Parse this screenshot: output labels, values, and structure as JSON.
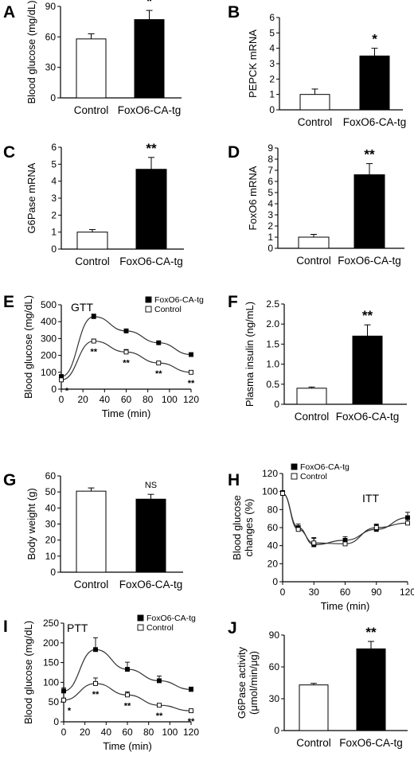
{
  "chart_data": [
    {
      "panel": "A",
      "type": "bar",
      "ylabel": "Blood glucose (mg/dL)",
      "categories": [
        "Control",
        "FoxO6-CA-tg"
      ],
      "values": [
        58,
        77
      ],
      "errors": [
        5,
        9
      ],
      "fills": [
        "#ffffff",
        "#000000"
      ],
      "ylim": [
        0,
        90
      ],
      "yticks": [
        "0",
        "30",
        "60",
        "90"
      ],
      "sig": "*"
    },
    {
      "panel": "B",
      "type": "bar",
      "ylabel": "PEPCK mRNA",
      "categories": [
        "Control",
        "FoxO6-CA-tg"
      ],
      "values": [
        1.0,
        3.5
      ],
      "errors": [
        0.35,
        0.5
      ],
      "fills": [
        "#ffffff",
        "#000000"
      ],
      "ylim": [
        0,
        6
      ],
      "yticks": [
        "0",
        "1",
        "2",
        "3",
        "4",
        "5",
        "6"
      ],
      "sig": "*"
    },
    {
      "panel": "C",
      "type": "bar",
      "ylabel": "G6Pase mRNA",
      "categories": [
        "Control",
        "FoxO6-CA-tg"
      ],
      "values": [
        1.0,
        4.7
      ],
      "errors": [
        0.15,
        0.7
      ],
      "fills": [
        "#ffffff",
        "#000000"
      ],
      "ylim": [
        0,
        6
      ],
      "yticks": [
        "0",
        "1",
        "2",
        "3",
        "4",
        "5",
        "6"
      ],
      "sig": "**"
    },
    {
      "panel": "D",
      "type": "bar",
      "ylabel": "FoxO6 mRNA",
      "categories": [
        "Control",
        "FoxO6-CA-tg"
      ],
      "values": [
        1.0,
        6.6
      ],
      "errors": [
        0.25,
        1.0
      ],
      "fills": [
        "#ffffff",
        "#000000"
      ],
      "ylim": [
        0,
        9
      ],
      "yticks": [
        "0",
        "1",
        "2",
        "3",
        "4",
        "5",
        "6",
        "7",
        "8",
        "9"
      ],
      "sig": "**"
    },
    {
      "panel": "E",
      "type": "line",
      "title": "GTT",
      "ylabel": "Blood glucose (mg/dL)",
      "xlabel": "Time (min)",
      "xlim": [
        0,
        120
      ],
      "ylim": [
        0,
        500
      ],
      "xticks": [
        "0",
        "20",
        "40",
        "60",
        "80",
        "100",
        "120"
      ],
      "yticks": [
        "0",
        "100",
        "200",
        "300",
        "400",
        "500"
      ],
      "legend": "top-right",
      "series": [
        {
          "name": "FoxO6-CA-tg",
          "marker": "filled",
          "x": [
            0,
            30,
            60,
            90,
            120
          ],
          "y": [
            75,
            430,
            345,
            275,
            205
          ],
          "err": [
            5,
            15,
            12,
            8,
            8
          ]
        },
        {
          "name": "Control",
          "marker": "open",
          "x": [
            0,
            30,
            60,
            90,
            120
          ],
          "y": [
            55,
            285,
            220,
            155,
            100
          ],
          "err": [
            5,
            12,
            15,
            8,
            5
          ]
        }
      ],
      "annotations": [
        {
          "x": 0,
          "text": "*"
        },
        {
          "x": 30,
          "text": "**"
        },
        {
          "x": 60,
          "text": "**"
        },
        {
          "x": 90,
          "text": "**"
        },
        {
          "x": 120,
          "text": "**"
        }
      ]
    },
    {
      "panel": "F",
      "type": "bar",
      "ylabel": "Plasma insulin (ng/mL)",
      "categories": [
        "Control",
        "FoxO6-CA-tg"
      ],
      "values": [
        0.4,
        1.7
      ],
      "errors": [
        0.03,
        0.28
      ],
      "fills": [
        "#ffffff",
        "#000000"
      ],
      "ylim": [
        0,
        2.5
      ],
      "yticks": [
        "0",
        "0.5",
        "1.0",
        "1.5",
        "2.0",
        "2.5"
      ],
      "sig": "**"
    },
    {
      "panel": "G",
      "type": "bar",
      "ylabel": "Body weight (g)",
      "categories": [
        "Control",
        "FoxO6-CA-tg"
      ],
      "values": [
        50.5,
        45.5
      ],
      "errors": [
        2,
        3
      ],
      "fills": [
        "#ffffff",
        "#000000"
      ],
      "ylim": [
        0,
        60
      ],
      "yticks": [
        "0",
        "10",
        "20",
        "30",
        "40",
        "50",
        "60"
      ],
      "sig": "NS"
    },
    {
      "panel": "H",
      "type": "line",
      "title": "ITT",
      "ylabel": "Blood glucose changes (%)",
      "ylabel_lines": [
        "Blood glucose",
        "changes (%)"
      ],
      "xlabel": "Time (min)",
      "xlim": [
        0,
        120
      ],
      "ylim": [
        0,
        120
      ],
      "xticks": [
        "0",
        "30",
        "60",
        "90",
        "120"
      ],
      "yticks": [
        "0",
        "20",
        "40",
        "60",
        "80",
        "100",
        "120"
      ],
      "legend": "top-left",
      "series": [
        {
          "name": "FoxO6-CA-tg",
          "marker": "filled-square",
          "x": [
            0,
            15,
            30,
            60,
            90,
            120
          ],
          "y": [
            98,
            60,
            41,
            46,
            58,
            71
          ],
          "err": [
            3,
            4,
            7,
            4,
            5,
            6
          ]
        },
        {
          "name": "Control",
          "marker": "open-square",
          "x": [
            0,
            15,
            30,
            60,
            90,
            120
          ],
          "y": [
            98,
            58,
            43,
            42,
            60,
            65
          ],
          "err": [
            3,
            4,
            6,
            3,
            4,
            5
          ]
        }
      ],
      "annotations": []
    },
    {
      "panel": "I",
      "type": "line",
      "title": "PTT",
      "ylabel": "Blood glucose (mg/dL)",
      "xlabel": "Time (min)",
      "xlim": [
        0,
        120
      ],
      "ylim": [
        0,
        250
      ],
      "xticks": [
        "0",
        "20",
        "40",
        "60",
        "80",
        "100",
        "120"
      ],
      "yticks": [
        "0",
        "50",
        "100",
        "150",
        "200",
        "250"
      ],
      "legend": "top-right",
      "series": [
        {
          "name": "FoxO6-CA-tg",
          "marker": "filled-square",
          "x": [
            0,
            30,
            60,
            90,
            120
          ],
          "y": [
            78,
            183,
            133,
            104,
            82
          ],
          "err": [
            8,
            30,
            18,
            12,
            6
          ]
        },
        {
          "name": "Control",
          "marker": "open-square",
          "x": [
            0,
            30,
            60,
            90,
            120
          ],
          "y": [
            55,
            97,
            68,
            42,
            28
          ],
          "err": [
            5,
            14,
            8,
            4,
            3
          ]
        }
      ],
      "annotations": [
        {
          "x": 0,
          "text": "*"
        },
        {
          "x": 30,
          "text": "**"
        },
        {
          "x": 60,
          "text": "**"
        },
        {
          "x": 90,
          "text": "**"
        },
        {
          "x": 120,
          "text": "**"
        }
      ]
    },
    {
      "panel": "J",
      "type": "bar",
      "ylabel": "G6Pase activity (μmol/min/μg)",
      "ylabel_lines": [
        "G6Pase activity",
        "(μmol/min/μg)"
      ],
      "categories": [
        "Control",
        "FoxO6-CA-tg"
      ],
      "values": [
        43,
        77
      ],
      "errors": [
        1.5,
        7
      ],
      "fills": [
        "#ffffff",
        "#000000"
      ],
      "ylim": [
        0,
        90
      ],
      "yticks": [
        "0",
        "30",
        "60",
        "90"
      ],
      "sig": "**"
    }
  ]
}
